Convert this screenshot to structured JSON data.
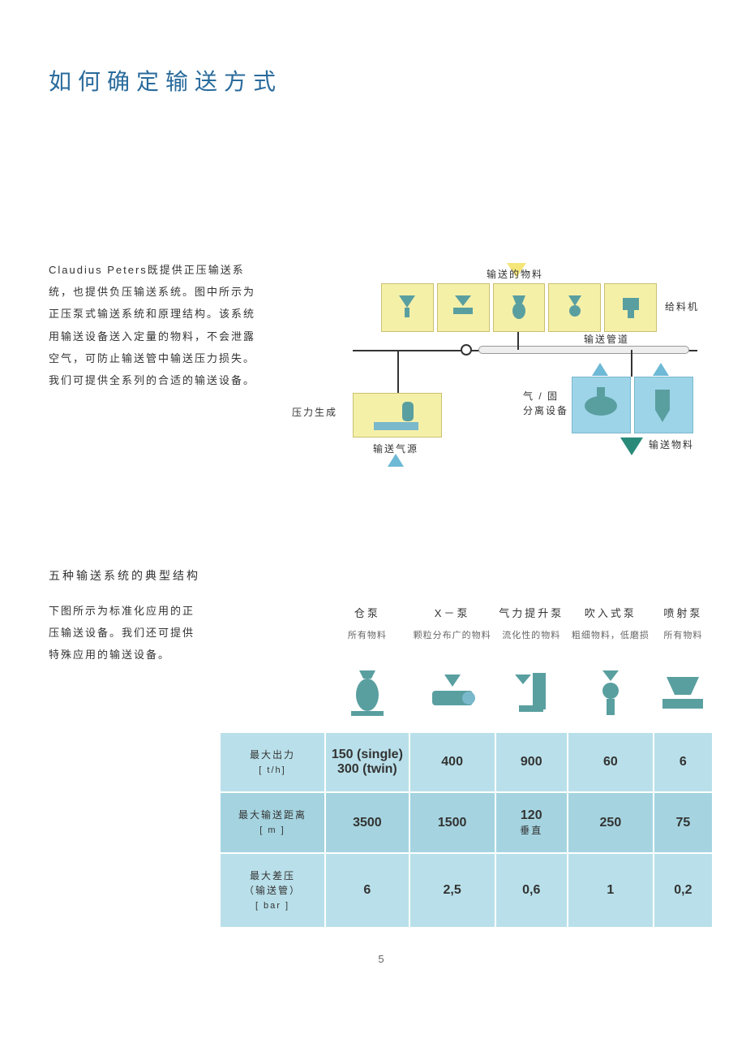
{
  "title": "如何确定输送方式",
  "intro": "Claudius Peters既提供正压输送系统，也提供负压输送系统。图中所示为正压泵式输送系统和原理结构。该系统用输送设备送入定量的物料，不会泄露空气，可防止输送管中输送压力损失。我们可提供全系列的合适的输送设备。",
  "diagram": {
    "label_material_in": "输送的物料",
    "label_feeder": "给料机",
    "label_pipe": "输送管道",
    "label_pressure_gen": "压力生成",
    "label_air_source": "输送气源",
    "label_gas_solid_sep": "气 / 固",
    "label_gas_solid_sep2": "分离设备",
    "label_material_out": "输送物料",
    "colors": {
      "yellow_box": "#f5f0a8",
      "blue_box": "#9dd4e8",
      "arrow_yellow": "#f5e67a",
      "arrow_blue": "#6db9d6",
      "arrow_teal": "#2a8a7a"
    }
  },
  "section2_title": "五种输送系统的典型结构",
  "section2_text": "下图所示为标准化应用的正压输送设备。我们还可提供特殊应用的输送设备。",
  "table": {
    "columns": [
      {
        "name": "仓泵",
        "sub": "所有物料"
      },
      {
        "name": "X－泵",
        "sub": "颗粒分布广的物料"
      },
      {
        "name": "气力提升泵",
        "sub": "流化性的物料"
      },
      {
        "name": "吹入式泵",
        "sub": "粗细物料，低磨损"
      },
      {
        "name": "喷射泵",
        "sub": "所有物料"
      }
    ],
    "rows": [
      {
        "label": "最大出力",
        "unit": "[ t/h]",
        "values": [
          "150 (single)\n300 (twin)",
          "400",
          "900",
          "60",
          "6"
        ]
      },
      {
        "label": "最大输送距离",
        "unit": "[ m ]",
        "values": [
          "3500",
          "1500",
          "120\n垂直",
          "250",
          "75"
        ]
      },
      {
        "label": "最大差压\n（输送管）",
        "unit": "[ bar ]",
        "values": [
          "6",
          "2,5",
          "0,6",
          "1",
          "0,2"
        ]
      }
    ],
    "colors": {
      "row_bg_light": "#b9e0ea",
      "row_bg_dark": "#a5d4e0",
      "icon_color": "#5a9fa0"
    }
  },
  "page_number": "5"
}
